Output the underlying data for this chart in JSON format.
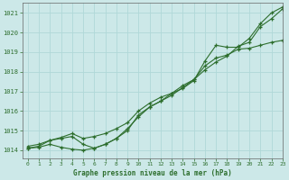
{
  "title": "Graphe pression niveau de la mer (hPa)",
  "bg_color": "#cce8e8",
  "grid_color": "#b0d8d8",
  "line_color": "#2d6e2d",
  "xlim": [
    -0.5,
    23
  ],
  "ylim": [
    1013.6,
    1021.5
  ],
  "yticks": [
    1014,
    1015,
    1016,
    1017,
    1018,
    1019,
    1020,
    1021
  ],
  "xticks": [
    0,
    1,
    2,
    3,
    4,
    5,
    6,
    7,
    8,
    9,
    10,
    11,
    12,
    13,
    14,
    15,
    16,
    17,
    18,
    19,
    20,
    21,
    22,
    23
  ],
  "series1": [
    1014.2,
    1014.3,
    1014.5,
    1014.6,
    1014.7,
    1014.3,
    1014.1,
    1014.3,
    1014.6,
    1015.0,
    1015.8,
    1016.2,
    1016.5,
    1016.8,
    1017.2,
    1017.6,
    1018.1,
    1018.5,
    1018.8,
    1019.3,
    1019.5,
    1020.3,
    1020.7,
    1021.2
  ],
  "series2": [
    1014.1,
    1014.15,
    1014.3,
    1014.15,
    1014.05,
    1014.0,
    1014.1,
    1014.3,
    1014.6,
    1015.1,
    1015.7,
    1016.2,
    1016.5,
    1016.9,
    1017.3,
    1017.6,
    1018.3,
    1018.7,
    1018.85,
    1019.15,
    1019.2,
    1019.35,
    1019.5,
    1019.6
  ],
  "series3": [
    1014.1,
    1014.2,
    1014.5,
    1014.65,
    1014.85,
    1014.6,
    1014.7,
    1014.85,
    1015.1,
    1015.4,
    1016.0,
    1016.4,
    1016.7,
    1016.9,
    1017.15,
    1017.55,
    1018.55,
    1019.35,
    1019.25,
    1019.25,
    1019.7,
    1020.45,
    1021.0,
    1021.3
  ]
}
